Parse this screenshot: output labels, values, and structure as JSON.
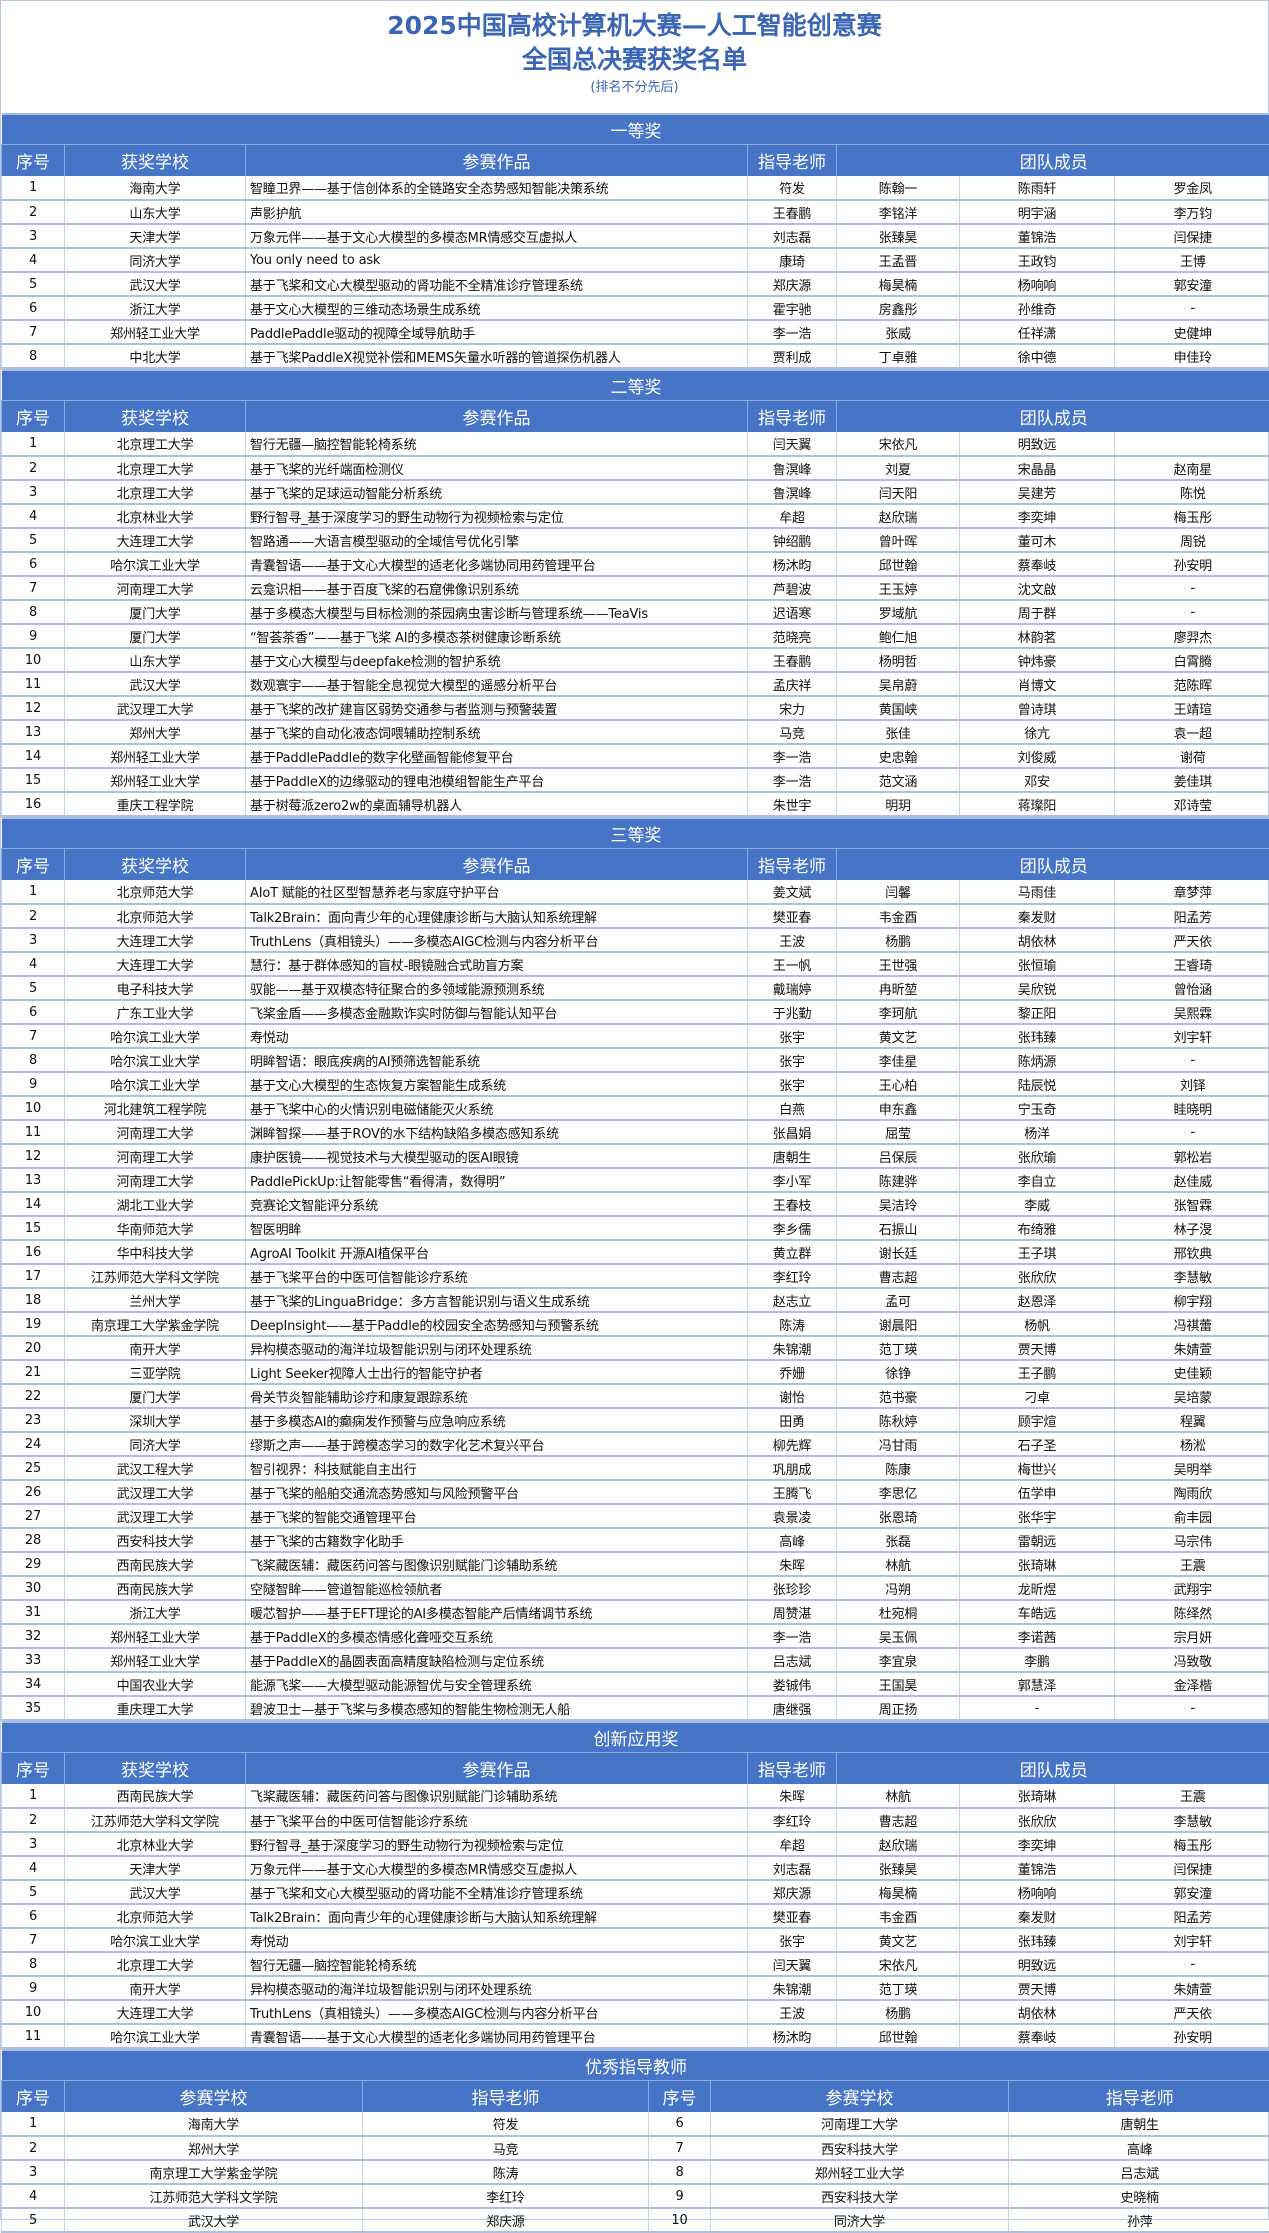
{
  "title": {
    "line1": "2025中国高校计算机大赛—人工智能创意赛",
    "line2": "全国总决赛获奖名单",
    "note": "(排名不分先后)"
  },
  "colors": {
    "band": "#4674c6",
    "title": "#3b65b5"
  },
  "award_headers": [
    "序号",
    "获奖学校",
    "参赛作品",
    "指导老师",
    "团队成员"
  ],
  "sections": [
    {
      "title": "一等奖",
      "rows": [
        [
          "1",
          "海南大学",
          "智瞳卫界——基于信创体系的全链路安全态势感知智能决策系统",
          "符发",
          "陈翰一",
          "陈雨轩",
          "罗金凤"
        ],
        [
          "2",
          "山东大学",
          "声影护航",
          "王春鹏",
          "李铭洋",
          "明宇涵",
          "李万钧"
        ],
        [
          "3",
          "天津大学",
          "万象元伴——基于文心大模型的多模态MR情感交互虚拟人",
          "刘志磊",
          "张臻昊",
          "董锦浩",
          "闫保捷"
        ],
        [
          "4",
          "同济大学",
          "You only need to ask",
          "康琦",
          "王孟晋",
          "王政钧",
          "王博"
        ],
        [
          "5",
          "武汉大学",
          "基于飞桨和文心大模型驱动的肾功能不全精准诊疗管理系统",
          "郑庆源",
          "梅昊楠",
          "杨响响",
          "郭安潼"
        ],
        [
          "6",
          "浙江大学",
          "基于文心大模型的三维动态场景生成系统",
          "霍宇驰",
          "房鑫彤",
          "孙维奇",
          "-"
        ],
        [
          "7",
          "郑州轻工业大学",
          "PaddlePaddle驱动的视障全域导航助手",
          "李一浩",
          "张威",
          "任祥潇",
          "史健坤"
        ],
        [
          "8",
          "中北大学",
          "基于飞桨PaddleX视觉补偿和MEMS矢量水听器的管道探伤机器人",
          "贾利成",
          "丁卓雅",
          "徐中德",
          "申佳玲"
        ]
      ]
    },
    {
      "title": "二等奖",
      "rows": [
        [
          "1",
          "北京理工大学",
          "智行无疆—脑控智能轮椅系统",
          "闫天翼",
          "宋依凡",
          "明致远",
          ""
        ],
        [
          "2",
          "北京理工大学",
          "基于飞桨的光纤端面检测仪",
          "鲁溟峰",
          "刘夏",
          "宋晶晶",
          "赵南星"
        ],
        [
          "3",
          "北京理工大学",
          "基于飞桨的足球运动智能分析系统",
          "鲁溟峰",
          "闫天阳",
          "吴建芳",
          "陈悦"
        ],
        [
          "4",
          "北京林业大学",
          "野行智寻_基于深度学习的野生动物行为视频检索与定位",
          "牟超",
          "赵欣瑞",
          "李奕坤",
          "梅玉彤"
        ],
        [
          "5",
          "大连理工大学",
          "智路通——大语言模型驱动的全域信号优化引擎",
          "钟绍鹏",
          "曾叶晖",
          "董可木",
          "周锐"
        ],
        [
          "6",
          "哈尔滨工业大学",
          "青囊智语——基于文心大模型的适老化多端协同用药管理平台",
          "杨沐昀",
          "邱世翰",
          "蔡奉岐",
          "孙安明"
        ],
        [
          "7",
          "河南理工大学",
          "云龛识相——基于百度飞桨的石窟佛像识别系统",
          "芦碧波",
          "王玉婷",
          "沈文啟",
          "-"
        ],
        [
          "8",
          "厦门大学",
          "基于多模态大模型与目标检测的茶园病虫害诊断与管理系统——TeaVis",
          "迟语寒",
          "罗域航",
          "周于群",
          "-"
        ],
        [
          "9",
          "厦门大学",
          "“智荟茶香”——基于飞桨 AI的多模态茶树健康诊断系统",
          "范晓亮",
          "鲍仁旭",
          "林韵茗",
          "廖羿杰"
        ],
        [
          "10",
          "山东大学",
          "基于文心大模型与deepfake检测的智护系统",
          "王春鹏",
          "杨明哲",
          "钟炜豪",
          "白霄腾"
        ],
        [
          "11",
          "武汉大学",
          "数观寰宇——基于智能全息视觉大模型的遥感分析平台",
          "孟庆祥",
          "吴帛蔚",
          "肖博文",
          "范陈晖"
        ],
        [
          "12",
          "武汉理工大学",
          "基于飞桨的改扩建盲区弱势交通参与者监测与预警装置",
          "宋力",
          "黄国峡",
          "曾诗琪",
          "王靖瑄"
        ],
        [
          "13",
          "郑州大学",
          "基于飞桨的自动化液态饲喂辅助控制系统",
          "马竞",
          "张佳",
          "徐亢",
          "袁一超"
        ],
        [
          "14",
          "郑州轻工业大学",
          "基于PaddlePaddle的数字化壁画智能修复平台",
          "李一浩",
          "史忠翰",
          "刘俊威",
          "谢荷"
        ],
        [
          "15",
          "郑州轻工业大学",
          "基于PaddleX的边缘驱动的锂电池模组智能生产平台",
          "李一浩",
          "范文涵",
          "邓安",
          "姜佳琪"
        ],
        [
          "16",
          "重庆工程学院",
          "基于树莓派zero2w的桌面辅导机器人",
          "朱世宇",
          "明玥",
          "蒋璨阳",
          "邓诗莹"
        ]
      ]
    },
    {
      "title": "三等奖",
      "rows": [
        [
          "1",
          "北京师范大学",
          "AIoT 赋能的社区型智慧养老与家庭守护平台",
          "姜文斌",
          "闫馨",
          "马雨佳",
          "章梦萍"
        ],
        [
          "2",
          "北京师范大学",
          "Talk2Brain：面向青少年的心理健康诊断与大脑认知系统理解",
          "樊亚春",
          "韦金酉",
          "秦发财",
          "阳孟芳"
        ],
        [
          "3",
          "大连理工大学",
          "TruthLens（真相镜头）——多模态AIGC检测与内容分析平台",
          "王波",
          "杨鹏",
          "胡依林",
          "严天依"
        ],
        [
          "4",
          "大连理工大学",
          "慧行：基于群体感知的盲杖-眼镜融合式助盲方案",
          "王一帆",
          "王世强",
          "张恒瑜",
          "王睿琦"
        ],
        [
          "5",
          "电子科技大学",
          "驭能——基于双模态特征聚合的多领域能源预测系统",
          "戴瑞婷",
          "冉昕堃",
          "吴欣锐",
          "曾怡涵"
        ],
        [
          "6",
          "广东工业大学",
          "飞桨金盾——多模态金融欺诈实时防御与智能认知平台",
          "于兆勤",
          "李珂航",
          "黎正阳",
          "吴熙霖"
        ],
        [
          "7",
          "哈尔滨工业大学",
          "寿悦动",
          "张宇",
          "黄文艺",
          "张玮臻",
          "刘宇轩"
        ],
        [
          "8",
          "哈尔滨工业大学",
          "明眸智语：眼底疾病的AI预筛选智能系统",
          "张宇",
          "李佳星",
          "陈炳源",
          "-"
        ],
        [
          "9",
          "哈尔滨工业大学",
          "基于文心大模型的生态恢复方案智能生成系统",
          "张宇",
          "王心柏",
          "陆辰悦",
          "刘铎"
        ],
        [
          "10",
          "河北建筑工程学院",
          "基于飞桨中心的火情识别电磁储能灭火系统",
          "白燕",
          "申东鑫",
          "宁玉奇",
          "眭晓明"
        ],
        [
          "11",
          "河南理工大学",
          "渊眸智探——基于ROV的水下结构缺陷多模态感知系统",
          "张昌娟",
          "屈莹",
          "杨洋",
          "-"
        ],
        [
          "12",
          "河南理工大学",
          "康护医镜——视觉技术与大模型驱动的医AI眼镜",
          "唐朝生",
          "吕保辰",
          "张欣瑜",
          "郭松岩"
        ],
        [
          "13",
          "河南理工大学",
          "PaddlePickUp:让智能零售“看得清，数得明”",
          "李小军",
          "陈建骅",
          "李自立",
          "赵佳威"
        ],
        [
          "14",
          "湖北工业大学",
          "竞赛论文智能评分系统",
          "王春枝",
          "吴洁玲",
          "李威",
          "张智霖"
        ],
        [
          "15",
          "华南师范大学",
          "智医明眸",
          "李乡儒",
          "石振山",
          "布绮雅",
          "林子渂"
        ],
        [
          "16",
          "华中科技大学",
          "AgroAI Toolkit 开源AI植保平台",
          "黄立群",
          "谢长廷",
          "王子琪",
          "邢钦典"
        ],
        [
          "17",
          "江苏师范大学科文学院",
          "基于飞桨平台的中医可信智能诊疗系统",
          "李红玲",
          "曹志超",
          "张欣欣",
          "李慧敏"
        ],
        [
          "18",
          "兰州大学",
          "基于飞桨的LinguaBridge：多方言智能识别与语义生成系统",
          "赵志立",
          "孟可",
          "赵恩泽",
          "柳宇翔"
        ],
        [
          "19",
          "南京理工大学紫金学院",
          "DeepInsight——基于Paddle的校园安全态势感知与预警系统",
          "陈涛",
          "谢晨阳",
          "杨帆",
          "冯祺蕾"
        ],
        [
          "20",
          "南开大学",
          "异构模态驱动的海洋垃圾智能识别与闭环处理系统",
          "朱锦潮",
          "范丁瑛",
          "贾天博",
          "朱婧萱"
        ],
        [
          "21",
          "三亚学院",
          "Light Seeker视障人士出行的智能守护者",
          "乔姗",
          "徐铮",
          "王子鹏",
          "史佳颖"
        ],
        [
          "22",
          "厦门大学",
          "骨关节炎智能辅助诊疗和康复跟踪系统",
          "谢怡",
          "范书豪",
          "刁卓",
          "吴培蒙"
        ],
        [
          "23",
          "深圳大学",
          "基于多模态AI的癫痫发作预警与应急响应系统",
          "田勇",
          "陈秋婷",
          "顾宇煊",
          "程翼"
        ],
        [
          "24",
          "同济大学",
          "缪斯之声——基于跨模态学习的数字化艺术复兴平台",
          "柳先辉",
          "冯甘雨",
          "石子圣",
          "杨淞"
        ],
        [
          "25",
          "武汉工程大学",
          "智引视界：科技赋能自主出行",
          "巩朋成",
          "陈康",
          "梅世兴",
          "吴明举"
        ],
        [
          "26",
          "武汉理工大学",
          "基于飞桨的船舶交通流态势感知与风险预警平台",
          "王腾飞",
          "李思亿",
          "伍学申",
          "陶雨欣"
        ],
        [
          "27",
          "武汉理工大学",
          "基于飞桨的智能交通管理平台",
          "袁景凌",
          "张恩琦",
          "张华宇",
          "俞丰园"
        ],
        [
          "28",
          "西安科技大学",
          "基于飞桨的古籍数字化助手",
          "高峰",
          "张磊",
          "雷朝远",
          "马宗伟"
        ],
        [
          "29",
          "西南民族大学",
          "飞桨藏医辅：藏医药问答与图像识别赋能门诊辅助系统",
          "朱晖",
          "林航",
          "张琦琳",
          "王震"
        ],
        [
          "30",
          "西南民族大学",
          "空隧智眸——管道智能巡检领航者",
          "张珍珍",
          "冯朔",
          "龙昕煜",
          "武翔宇"
        ],
        [
          "31",
          "浙江大学",
          "暖芯智护——基于EFT理论的AI多模态智能产后情绪调节系统",
          "周赞湛",
          "杜宛桐",
          "车皓远",
          "陈绎然"
        ],
        [
          "32",
          "郑州轻工业大学",
          "基于PaddleX的多模态情感化聋哑交互系统",
          "李一浩",
          "吴玉佩",
          "李诺茜",
          "宗月妍"
        ],
        [
          "33",
          "郑州轻工业大学",
          "基于PaddleX的晶圆表面高精度缺陷检测与定位系统",
          "吕志斌",
          "李宜泉",
          "李鹏",
          "冯致敬"
        ],
        [
          "34",
          "中国农业大学",
          "能源飞桨——大模型驱动能源智优与安全管理系统",
          "娄铖伟",
          "王国昊",
          "郭慧泽",
          "金泽楷"
        ],
        [
          "35",
          "重庆理工大学",
          "碧波卫士—基于飞桨与多模态感知的智能生物检测无人船",
          "唐继强",
          "周正扬",
          "-",
          "-"
        ]
      ]
    },
    {
      "title": "创新应用奖",
      "rows": [
        [
          "1",
          "西南民族大学",
          "飞桨藏医辅：藏医药问答与图像识别赋能门诊辅助系统",
          "朱晖",
          "林航",
          "张琦琳",
          "王震"
        ],
        [
          "2",
          "江苏师范大学科文学院",
          "基于飞桨平台的中医可信智能诊疗系统",
          "李红玲",
          "曹志超",
          "张欣欣",
          "李慧敏"
        ],
        [
          "3",
          "北京林业大学",
          "野行智寻_基于深度学习的野生动物行为视频检索与定位",
          "牟超",
          "赵欣瑞",
          "李奕坤",
          "梅玉彤"
        ],
        [
          "4",
          "天津大学",
          "万象元伴——基于文心大模型的多模态MR情感交互虚拟人",
          "刘志磊",
          "张臻昊",
          "董锦浩",
          "闫保捷"
        ],
        [
          "5",
          "武汉大学",
          "基于飞桨和文心大模型驱动的肾功能不全精准诊疗管理系统",
          "郑庆源",
          "梅昊楠",
          "杨响响",
          "郭安潼"
        ],
        [
          "6",
          "北京师范大学",
          "Talk2Brain：面向青少年的心理健康诊断与大脑认知系统理解",
          "樊亚春",
          "韦金酉",
          "秦发财",
          "阳孟芳"
        ],
        [
          "7",
          "哈尔滨工业大学",
          "寿悦动",
          "张宇",
          "黄文艺",
          "张玮臻",
          "刘宇轩"
        ],
        [
          "8",
          "北京理工大学",
          "智行无疆—脑控智能轮椅系统",
          "闫天翼",
          "宋依凡",
          "明致远",
          "-"
        ],
        [
          "9",
          "南开大学",
          "异构模态驱动的海洋垃圾智能识别与闭环处理系统",
          "朱锦潮",
          "范丁瑛",
          "贾天博",
          "朱婧萱"
        ],
        [
          "10",
          "大连理工大学",
          "TruthLens（真相镜头）——多模态AIGC检测与内容分析平台",
          "王波",
          "杨鹏",
          "胡依林",
          "严天依"
        ],
        [
          "11",
          "哈尔滨工业大学",
          "青囊智语——基于文心大模型的适老化多端协同用药管理平台",
          "杨沐昀",
          "邱世翰",
          "蔡奉岐",
          "孙安明"
        ]
      ]
    }
  ],
  "teachers": {
    "title": "优秀指导教师",
    "headers": [
      "序号",
      "参赛学校",
      "指导老师",
      "序号",
      "参赛学校",
      "指导老师"
    ],
    "rows": [
      [
        "1",
        "海南大学",
        "符发",
        "6",
        "河南理工大学",
        "唐朝生"
      ],
      [
        "2",
        "郑州大学",
        "马竞",
        "7",
        "西安科技大学",
        "高峰"
      ],
      [
        "3",
        "南京理工大学紫金学院",
        "陈涛",
        "8",
        "郑州轻工业大学",
        "吕志斌"
      ],
      [
        "4",
        "江苏师范大学科文学院",
        "李红玲",
        "9",
        "西安科技大学",
        "史晓楠"
      ],
      [
        "5",
        "武汉大学",
        "郑庆源",
        "10",
        "同济大学",
        "孙萍"
      ]
    ]
  }
}
